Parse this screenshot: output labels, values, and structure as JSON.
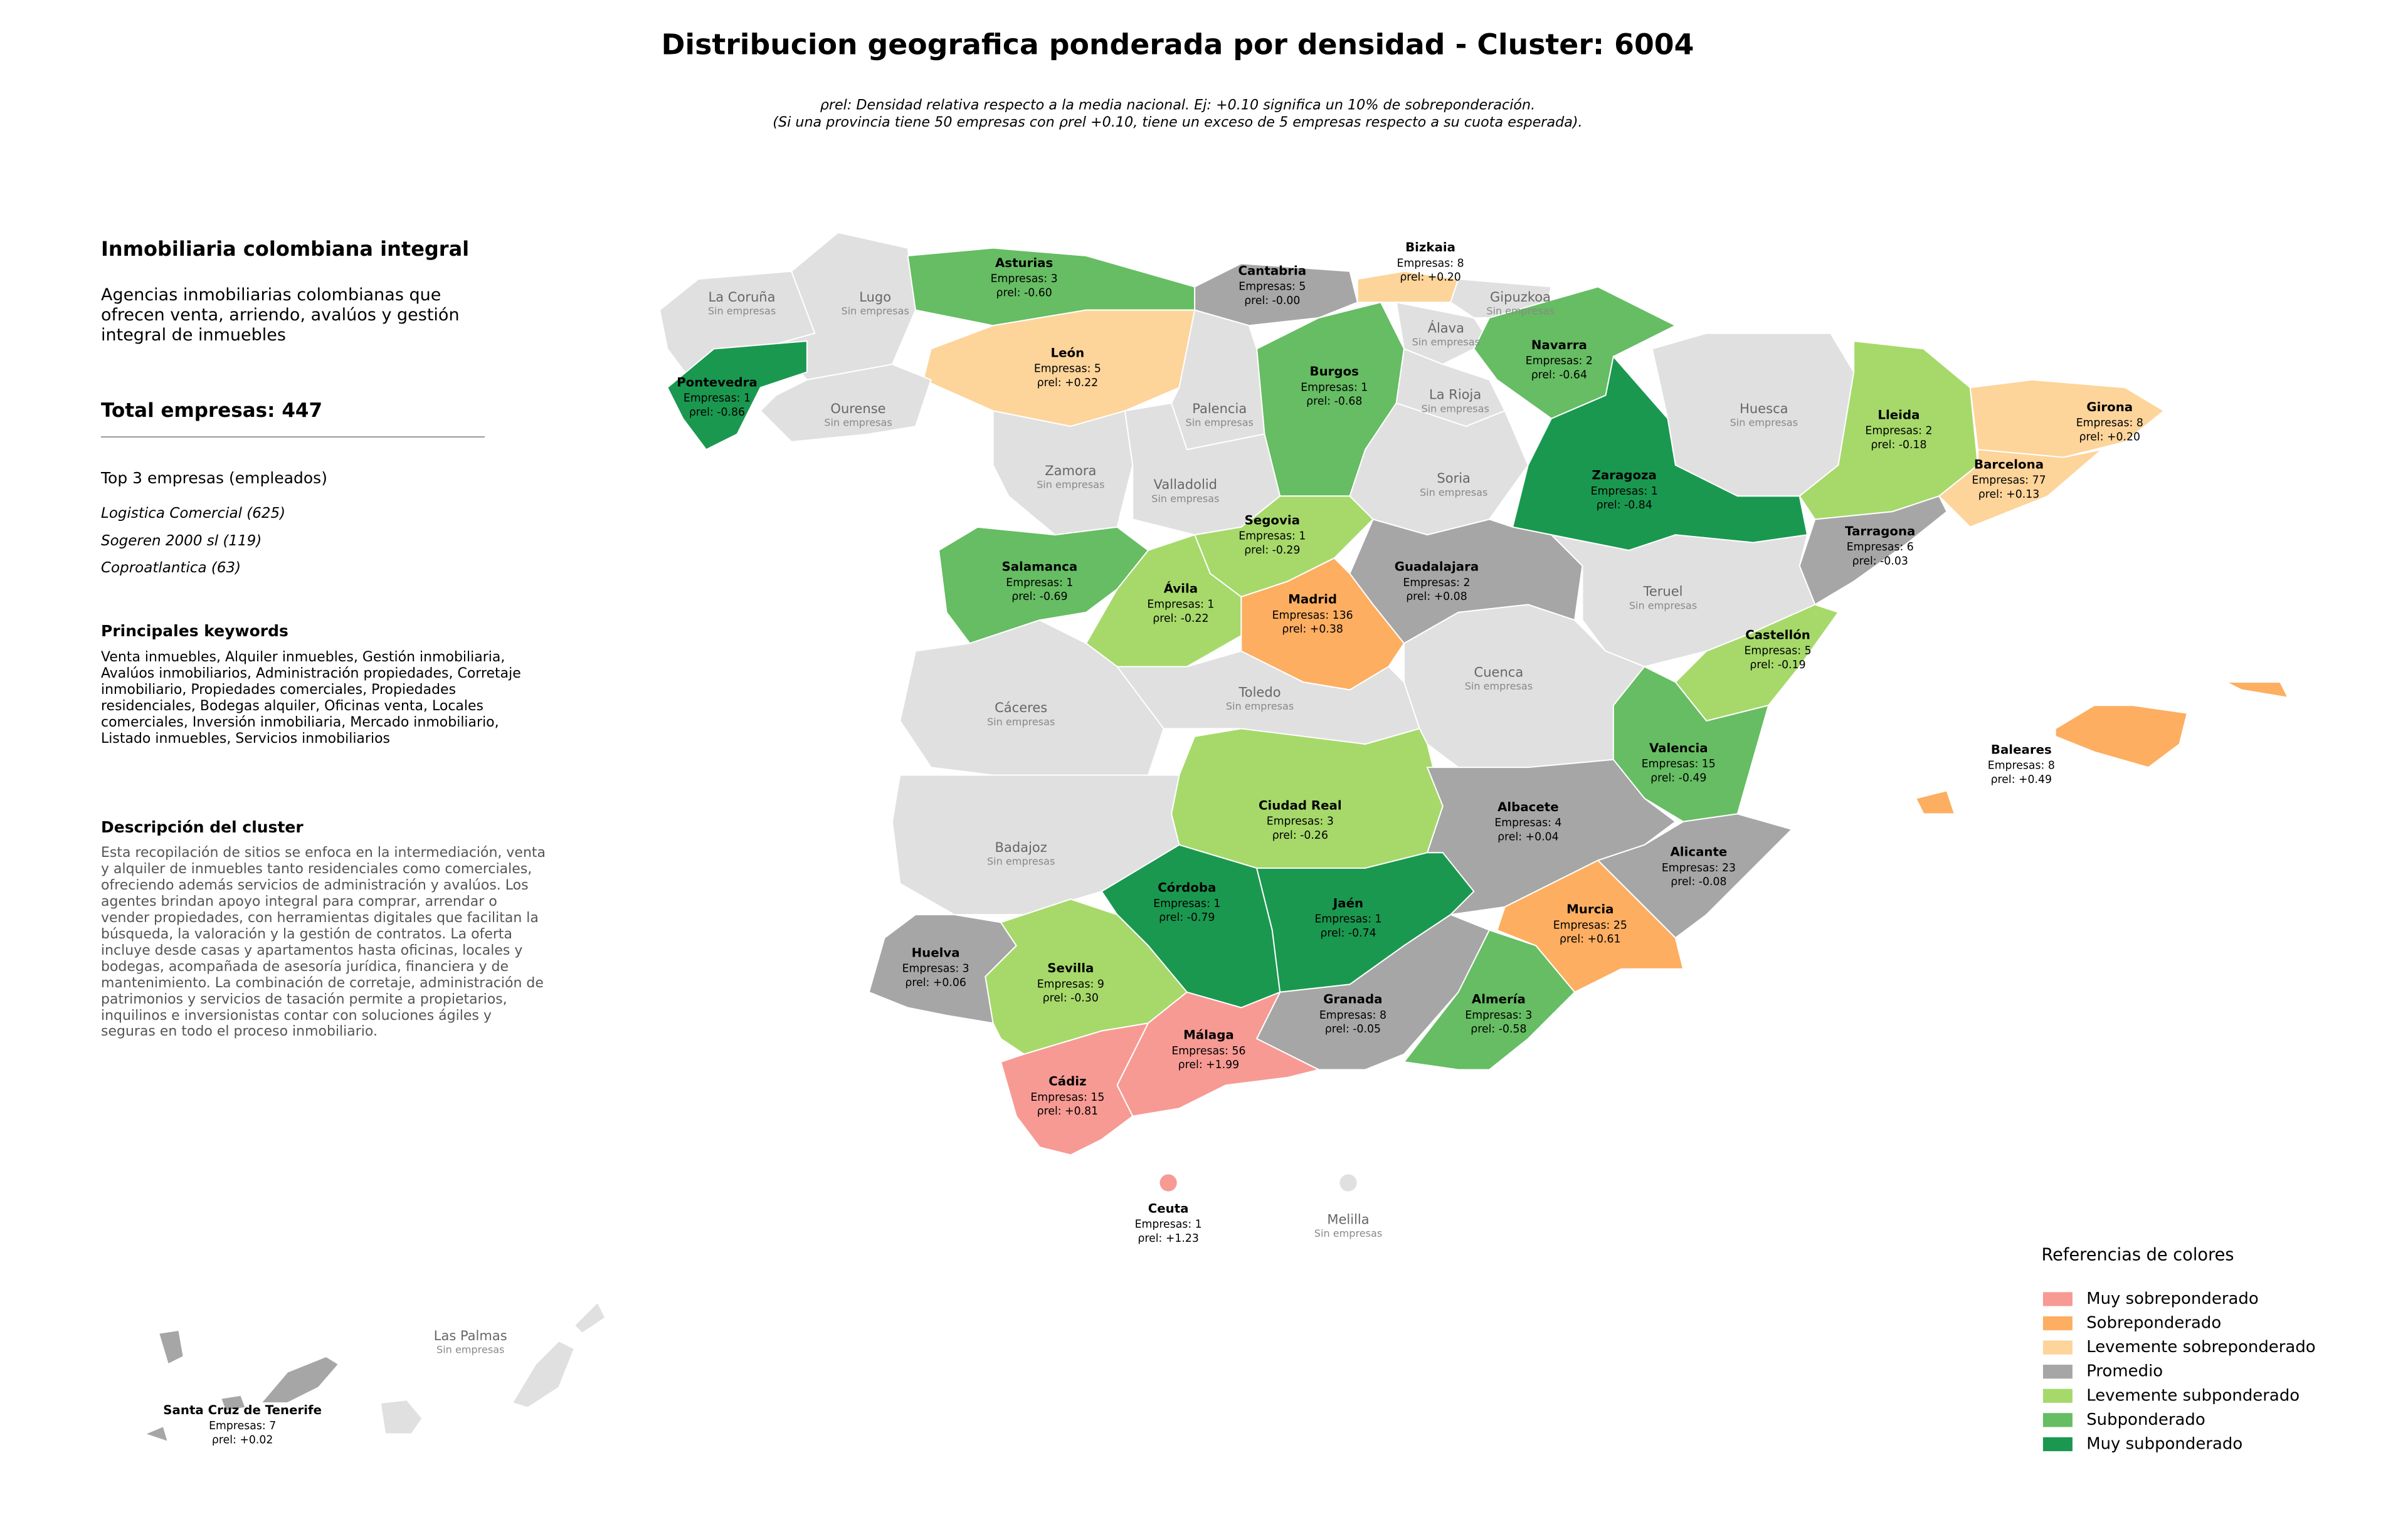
{
  "header": {
    "title": "Distribucion geografica ponderada por densidad - Cluster: 6004",
    "note_line1": "ρrel: Densidad relativa respecto a la media nacional. Ej: +0.10 significa un 10% de sobreponderación.",
    "note_line2": "(Si una provincia tiene 50 empresas con ρrel +0.10, tiene un exceso de 5 empresas respecto a su cuota esperada)."
  },
  "panel": {
    "name": "Inmobiliaria colombiana integral",
    "description_short": "Agencias inmobiliarias colombianas que ofrecen venta, arriendo, avalúos y gestión integral de inmuebles",
    "total": "Total empresas: 447",
    "top_heading": "Top 3 empresas (empleados)",
    "top_companies": [
      "Logistica Comercial (625)",
      "Sogeren 2000 sl (119)",
      "Coproatlantica (63)"
    ],
    "keywords_heading": "Principales keywords",
    "keywords": "Venta inmuebles, Alquiler inmuebles, Gestión inmobiliaria, Avalúos inmobiliarios, Administración propiedades, Corretaje inmobiliario, Propiedades comerciales, Propiedades residenciales, Bodegas alquiler, Oficinas venta, Locales comerciales, Inversión inmobiliaria, Mercado inmobiliario, Listado inmuebles, Servicios inmobiliarios",
    "cluster_heading": "Descripción del cluster",
    "cluster_description": "Esta recopilación de sitios se enfoca en la intermediación, venta y alquiler de inmuebles tanto residenciales como comerciales, ofreciendo además servicios de administración y avalúos. Los agentes brindan apoyo integral para comprar, arrendar o vender propiedades, con herramientas digitales que facilitan la búsqueda, la valoración y la gestión de contratos. La oferta incluye desde casas y apartamentos hasta oficinas, locales y bodegas, acompañada de asesoría jurídica, financiera y de mantenimiento. La combinación de corretaje, administración de patrimonios y servicios de tasación permite a propietarios, inquilinos e inversionistas contar con soluciones ágiles y seguras en todo el proceso inmobiliario."
  },
  "provinces": [
    {
      "name": "La Coruña",
      "note": "Sin empresas",
      "color": "#e0e0e0"
    },
    {
      "name": "Lugo",
      "note": "Sin empresas",
      "color": "#e0e0e0"
    },
    {
      "name": "Asturias",
      "companies": "Empresas: 3",
      "rho": "ρrel: -0.60",
      "color": "#66bd63"
    },
    {
      "name": "Cantabria",
      "companies": "Empresas: 5",
      "rho": "ρrel: -0.00",
      "color": "#a6a6a6"
    },
    {
      "name": "Bizkaia",
      "companies": "Empresas: 8",
      "rho": "ρrel: +0.20",
      "color": "#fdd49a"
    },
    {
      "name": "Gipuzkoa",
      "note": "Sin empresas",
      "color": "#e0e0e0"
    },
    {
      "name": "Álava",
      "note": "Sin empresas",
      "color": "#e0e0e0"
    },
    {
      "name": "Navarra",
      "companies": "Empresas: 2",
      "rho": "ρrel: -0.64",
      "color": "#66bd63"
    },
    {
      "name": "León",
      "companies": "Empresas: 5",
      "rho": "ρrel: +0.22",
      "color": "#fdd49a"
    },
    {
      "name": "Burgos",
      "companies": "Empresas: 1",
      "rho": "ρrel: -0.68",
      "color": "#66bd63"
    },
    {
      "name": "Pontevedra",
      "companies": "Empresas: 1",
      "rho": "ρrel: -0.86",
      "color": "#1a9850"
    },
    {
      "name": "Ourense",
      "note": "Sin empresas",
      "color": "#e0e0e0"
    },
    {
      "name": "Palencia",
      "note": "Sin empresas",
      "color": "#e0e0e0"
    },
    {
      "name": "La Rioja",
      "note": "Sin empresas",
      "color": "#e0e0e0"
    },
    {
      "name": "Huesca",
      "note": "Sin empresas",
      "color": "#e0e0e0"
    },
    {
      "name": "Lleida",
      "companies": "Empresas: 2",
      "rho": "ρrel: -0.18",
      "color": "#a6d96a"
    },
    {
      "name": "Girona",
      "companies": "Empresas: 8",
      "rho": "ρrel: +0.20",
      "color": "#fdd49a"
    },
    {
      "name": "Barcelona",
      "companies": "Empresas: 77",
      "rho": "ρrel: +0.13",
      "color": "#fdd49a"
    },
    {
      "name": "Zamora",
      "note": "Sin empresas",
      "color": "#e0e0e0"
    },
    {
      "name": "Valladolid",
      "note": "Sin empresas",
      "color": "#e0e0e0"
    },
    {
      "name": "Soria",
      "note": "Sin empresas",
      "color": "#e0e0e0"
    },
    {
      "name": "Zaragoza",
      "companies": "Empresas: 1",
      "rho": "ρrel: -0.84",
      "color": "#1a9850"
    },
    {
      "name": "Segovia",
      "companies": "Empresas: 1",
      "rho": "ρrel: -0.29",
      "color": "#a6d96a"
    },
    {
      "name": "Tarragona",
      "companies": "Empresas: 6",
      "rho": "ρrel: -0.03",
      "color": "#a6a6a6"
    },
    {
      "name": "Salamanca",
      "companies": "Empresas: 1",
      "rho": "ρrel: -0.69",
      "color": "#66bd63"
    },
    {
      "name": "Guadalajara",
      "companies": "Empresas: 2",
      "rho": "ρrel: +0.08",
      "color": "#a6a6a6"
    },
    {
      "name": "Ávila",
      "companies": "Empresas: 1",
      "rho": "ρrel: -0.22",
      "color": "#a6d96a"
    },
    {
      "name": "Madrid",
      "companies": "Empresas: 136",
      "rho": "ρrel: +0.38",
      "color": "#fdae61"
    },
    {
      "name": "Teruel",
      "note": "Sin empresas",
      "color": "#e0e0e0"
    },
    {
      "name": "Castellón",
      "companies": "Empresas: 5",
      "rho": "ρrel: -0.19",
      "color": "#a6d96a"
    },
    {
      "name": "Cáceres",
      "note": "Sin empresas",
      "color": "#e0e0e0"
    },
    {
      "name": "Toledo",
      "note": "Sin empresas",
      "color": "#e0e0e0"
    },
    {
      "name": "Cuenca",
      "note": "Sin empresas",
      "color": "#e0e0e0"
    },
    {
      "name": "Baleares",
      "companies": "Empresas: 8",
      "rho": "ρrel: +0.49",
      "color": "#fdae61"
    },
    {
      "name": "Valencia",
      "companies": "Empresas: 15",
      "rho": "ρrel: -0.49",
      "color": "#66bd63"
    },
    {
      "name": "Ciudad Real",
      "companies": "Empresas: 3",
      "rho": "ρrel: -0.26",
      "color": "#a6d96a"
    },
    {
      "name": "Albacete",
      "companies": "Empresas: 4",
      "rho": "ρrel: +0.04",
      "color": "#a6a6a6"
    },
    {
      "name": "Badajoz",
      "note": "Sin empresas",
      "color": "#e0e0e0"
    },
    {
      "name": "Alicante",
      "companies": "Empresas: 23",
      "rho": "ρrel: -0.08",
      "color": "#a6a6a6"
    },
    {
      "name": "Córdoba",
      "companies": "Empresas: 1",
      "rho": "ρrel: -0.79",
      "color": "#1a9850"
    },
    {
      "name": "Jaén",
      "companies": "Empresas: 1",
      "rho": "ρrel: -0.74",
      "color": "#1a9850"
    },
    {
      "name": "Murcia",
      "companies": "Empresas: 25",
      "rho": "ρrel: +0.61",
      "color": "#fdae61"
    },
    {
      "name": "Huelva",
      "companies": "Empresas: 3",
      "rho": "ρrel: +0.06",
      "color": "#a6a6a6"
    },
    {
      "name": "Sevilla",
      "companies": "Empresas: 9",
      "rho": "ρrel: -0.30",
      "color": "#a6d96a"
    },
    {
      "name": "Granada",
      "companies": "Empresas: 8",
      "rho": "ρrel: -0.05",
      "color": "#a6a6a6"
    },
    {
      "name": "Almería",
      "companies": "Empresas: 3",
      "rho": "ρrel: -0.58",
      "color": "#66bd63"
    },
    {
      "name": "Málaga",
      "companies": "Empresas: 56",
      "rho": "ρrel: +1.99",
      "color": "#f79a94"
    },
    {
      "name": "Cádiz",
      "companies": "Empresas: 15",
      "rho": "ρrel: +0.81",
      "color": "#f79a94"
    },
    {
      "name": "Ceuta",
      "companies": "Empresas: 1",
      "rho": "ρrel: +1.23",
      "color": "#f79a94"
    },
    {
      "name": "Melilla",
      "note": "Sin empresas",
      "color": "#e0e0e0"
    },
    {
      "name": "Las Palmas",
      "note": "Sin empresas",
      "color": "#e0e0e0"
    },
    {
      "name": "Santa Cruz de Tenerife",
      "companies": "Empresas: 7",
      "rho": "ρrel: +0.02",
      "color": "#a6a6a6"
    }
  ],
  "legend": {
    "title": "Referencias de colores",
    "categories": [
      {
        "label": "Muy sobreponderado",
        "color": "#f79a94"
      },
      {
        "label": "Sobreponderado",
        "color": "#fdae61"
      },
      {
        "label": "Levemente sobreponderado",
        "color": "#fdd49a"
      },
      {
        "label": "Promedio",
        "color": "#a6a6a6"
      },
      {
        "label": "Levemente subponderado",
        "color": "#a6d96a"
      },
      {
        "label": "Subponderado",
        "color": "#66bd63"
      },
      {
        "label": "Muy subponderado",
        "color": "#1a9850"
      }
    ]
  }
}
